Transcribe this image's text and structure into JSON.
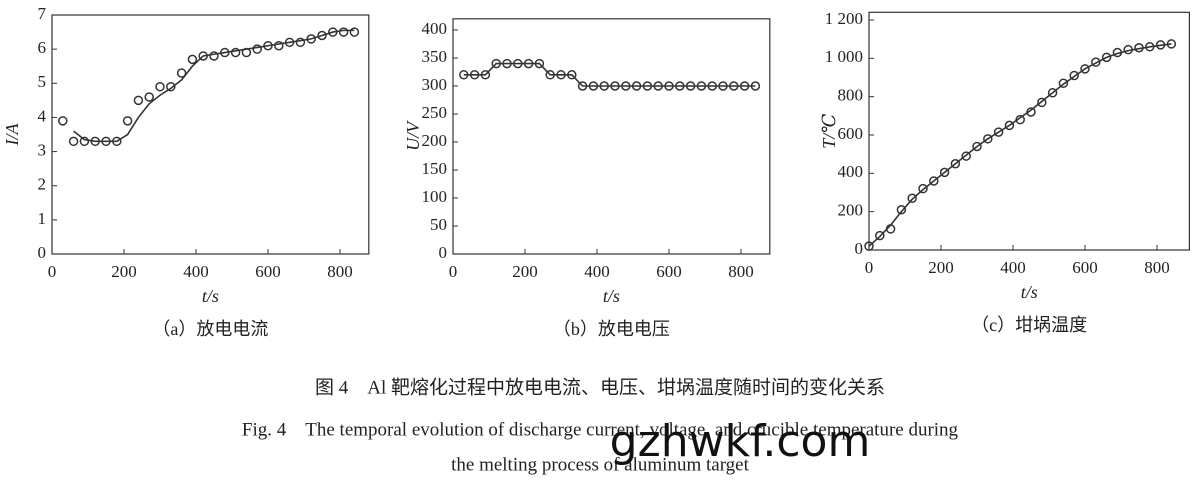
{
  "chart_data": [
    {
      "type": "line",
      "caption": "（a）放电电流",
      "xlabel": "t/s",
      "ylabel": "I/A",
      "x": [
        30,
        60,
        90,
        120,
        150,
        180,
        210,
        240,
        270,
        300,
        330,
        360,
        390,
        420,
        450,
        480,
        510,
        540,
        570,
        600,
        630,
        660,
        690,
        720,
        750,
        780,
        810,
        840
      ],
      "series": [
        {
          "style": "markers",
          "color": "#333333",
          "values": [
            3.9,
            3.3,
            3.3,
            3.3,
            3.3,
            3.3,
            3.9,
            4.5,
            4.6,
            4.9,
            4.9,
            5.3,
            5.7,
            5.8,
            5.8,
            5.9,
            5.9,
            5.9,
            6.0,
            6.1,
            6.1,
            6.2,
            6.2,
            6.3,
            6.4,
            6.5,
            6.5,
            6.5
          ]
        },
        {
          "style": "line",
          "color": "#333333",
          "values": [
            null,
            3.6,
            3.35,
            3.3,
            3.3,
            3.3,
            3.5,
            4.0,
            4.4,
            4.65,
            4.85,
            5.1,
            5.5,
            5.8,
            5.85,
            5.9,
            5.95,
            6.0,
            6.05,
            6.1,
            6.15,
            6.2,
            6.25,
            6.3,
            6.4,
            6.5,
            6.55,
            6.55
          ]
        }
      ],
      "xlim": [
        0,
        880
      ],
      "xticks": [
        0,
        200,
        400,
        600,
        800
      ],
      "ylim": [
        0,
        7
      ],
      "yticks": [
        0,
        1,
        2,
        3,
        4,
        5,
        6,
        7
      ]
    },
    {
      "type": "line",
      "caption": "（b）放电电压",
      "xlabel": "t/s",
      "ylabel": "U/V",
      "x": [
        30,
        60,
        90,
        120,
        150,
        180,
        210,
        240,
        270,
        300,
        330,
        360,
        390,
        420,
        450,
        480,
        510,
        540,
        570,
        600,
        630,
        660,
        690,
        720,
        750,
        780,
        810,
        840
      ],
      "series": [
        {
          "style": "markers",
          "color": "#333333",
          "values": [
            320,
            320,
            320,
            340,
            340,
            340,
            340,
            340,
            320,
            320,
            320,
            300,
            300,
            300,
            300,
            300,
            300,
            300,
            300,
            300,
            300,
            300,
            300,
            300,
            300,
            300,
            300,
            300
          ]
        },
        {
          "style": "line",
          "color": "#333333",
          "values": [
            320,
            320,
            320,
            340,
            340,
            340,
            340,
            340,
            320,
            320,
            320,
            300,
            300,
            300,
            300,
            300,
            300,
            300,
            300,
            300,
            300,
            300,
            300,
            300,
            300,
            300,
            300,
            300
          ]
        }
      ],
      "xlim": [
        0,
        880
      ],
      "xticks": [
        0,
        200,
        400,
        600,
        800
      ],
      "ylim": [
        0,
        420
      ],
      "yticks": [
        0,
        50,
        100,
        150,
        200,
        250,
        300,
        350,
        400
      ]
    },
    {
      "type": "line",
      "caption": "（c）坩埚温度",
      "xlabel": "t/s",
      "ylabel": "T/℃",
      "x": [
        0,
        30,
        60,
        90,
        120,
        150,
        180,
        210,
        240,
        270,
        300,
        330,
        360,
        390,
        420,
        450,
        480,
        510,
        540,
        570,
        600,
        630,
        660,
        690,
        720,
        750,
        780,
        810,
        840
      ],
      "series": [
        {
          "style": "markers",
          "color": "#333333",
          "values": [
            20,
            75,
            110,
            210,
            270,
            320,
            360,
            405,
            450,
            490,
            540,
            580,
            615,
            650,
            680,
            720,
            770,
            820,
            870,
            910,
            945,
            980,
            1005,
            1030,
            1045,
            1055,
            1060,
            1070,
            1075
          ]
        },
        {
          "style": "line",
          "color": "#333333",
          "values": [
            20,
            70,
            130,
            200,
            265,
            315,
            360,
            405,
            450,
            495,
            540,
            580,
            615,
            650,
            690,
            730,
            775,
            820,
            865,
            905,
            945,
            975,
            1005,
            1025,
            1040,
            1050,
            1060,
            1068,
            1075
          ]
        }
      ],
      "xlim": [
        0,
        890
      ],
      "xticks": [
        0,
        200,
        400,
        600,
        800
      ],
      "ylim": [
        0,
        1240
      ],
      "yticks": [
        0,
        200,
        400,
        600,
        800,
        {
          "value": 1000,
          "label": "1 000"
        },
        {
          "value": 1200,
          "label": "1 200"
        }
      ]
    }
  ],
  "figure_caption_zh": "图 4　Al 靶熔化过程中放电电流、电压、坩埚温度随时间的变化关系",
  "figure_caption_en": [
    "Fig. 4　The temporal evolution of discharge current, voltage, and crucible temperature during",
    "the melting process of aluminum target"
  ],
  "watermark": "gzhwkf.com"
}
